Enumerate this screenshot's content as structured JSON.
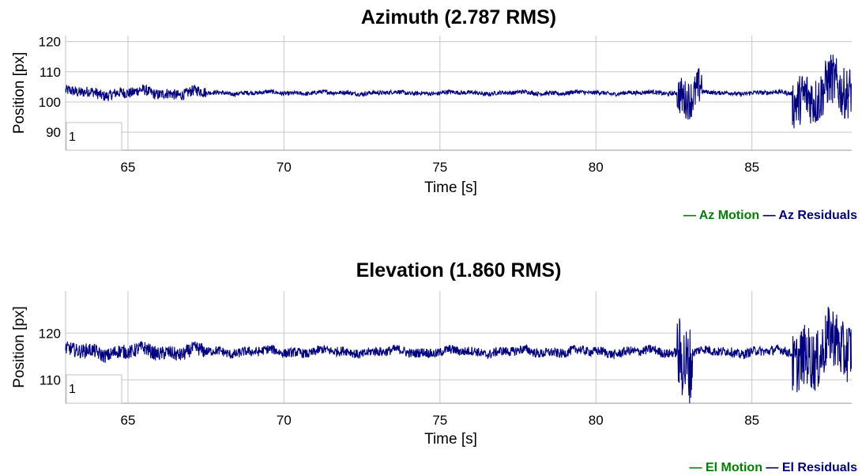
{
  "colors": {
    "motion": "#008000",
    "residuals": "#000080"
  },
  "chart_data": [
    {
      "type": "line",
      "title": "Azimuth (2.787 RMS)",
      "xlabel": "Time [s]",
      "ylabel": "Position [px]",
      "xlim": [
        63,
        88.2
      ],
      "ylim": [
        84,
        122
      ],
      "xticks": [
        65,
        70,
        75,
        80,
        85
      ],
      "yticks": [
        90,
        100,
        110,
        120
      ],
      "grid": true,
      "inset_label": "1",
      "legend": {
        "position": "bottom-right",
        "entries": [
          "— Az Motion",
          "— Az Residuals"
        ]
      },
      "series": [
        {
          "name": "Az Residuals",
          "baseline": 103,
          "segments": [
            {
              "start": 63,
              "end": 67.5,
              "amp": 1.8
            },
            {
              "start": 67.5,
              "end": 82.6,
              "amp": 0.7
            },
            {
              "start": 82.6,
              "end": 83.4,
              "amp": 6.5
            },
            {
              "start": 83.4,
              "end": 86.3,
              "amp": 0.7
            },
            {
              "start": 86.3,
              "end": 88.2,
              "amp": 8.5
            }
          ]
        }
      ]
    },
    {
      "type": "line",
      "title": "Elevation (1.860 RMS)",
      "xlabel": "Time [s]",
      "ylabel": "Position [px]",
      "xlim": [
        63,
        88.2
      ],
      "ylim": [
        105,
        129
      ],
      "xticks": [
        65,
        70,
        75,
        80,
        85
      ],
      "yticks": [
        110,
        120
      ],
      "grid": true,
      "inset_label": "1",
      "legend": {
        "position": "bottom-right",
        "entries": [
          "— El Motion",
          "— El Residuals"
        ]
      },
      "series": [
        {
          "name": "El Residuals",
          "baseline": 116,
          "segments": [
            {
              "start": 63,
              "end": 67.5,
              "amp": 1.5
            },
            {
              "start": 67.5,
              "end": 82.6,
              "amp": 1.0
            },
            {
              "start": 82.6,
              "end": 83.1,
              "amp": 8.5
            },
            {
              "start": 83.1,
              "end": 86.3,
              "amp": 1.0
            },
            {
              "start": 86.3,
              "end": 88.2,
              "amp": 6.5
            }
          ]
        }
      ]
    }
  ]
}
